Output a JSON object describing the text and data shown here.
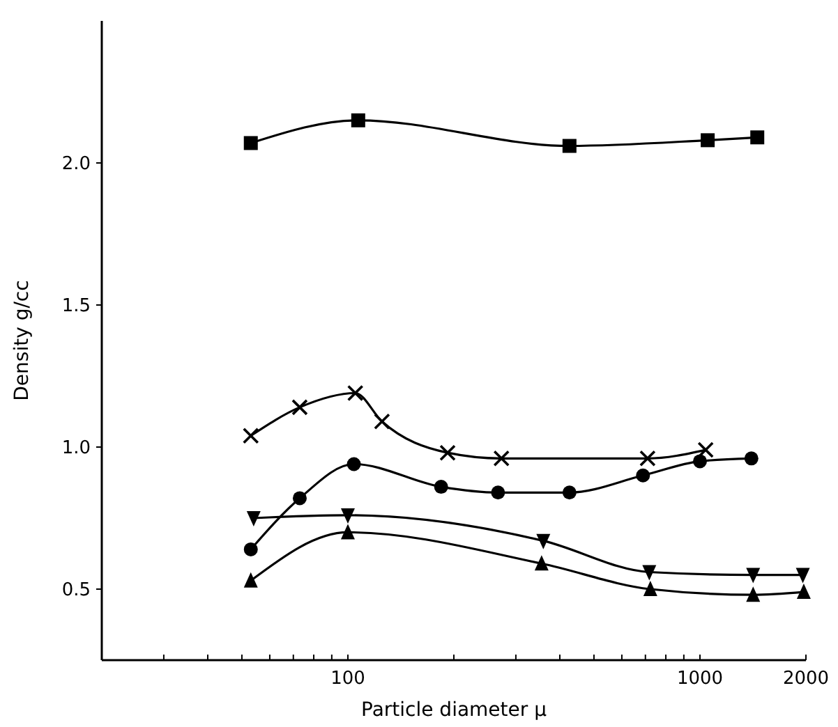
{
  "chart_data": {
    "type": "line",
    "xlabel": "Particle diameter μ",
    "ylabel": "Density g/cc",
    "log": "x",
    "grid": false,
    "xlim": [
      20,
      2000
    ],
    "ylim": [
      0.25,
      2.5
    ],
    "xticks": [
      {
        "value": 30,
        "label": null
      },
      {
        "value": 40,
        "label": null
      },
      {
        "value": 50,
        "label": null
      },
      {
        "value": 60,
        "label": null
      },
      {
        "value": 70,
        "label": null
      },
      {
        "value": 80,
        "label": null
      },
      {
        "value": 90,
        "label": null
      },
      100,
      {
        "value": 200,
        "label": null
      },
      {
        "value": 300,
        "label": null
      },
      {
        "value": 400,
        "label": null
      },
      {
        "value": 500,
        "label": null
      },
      {
        "value": 600,
        "label": null
      },
      {
        "value": 700,
        "label": null
      },
      {
        "value": 800,
        "label": null
      },
      {
        "value": 900,
        "label": null
      },
      1000,
      2000
    ],
    "yticks": [
      0.5,
      {
        "value": 1.0,
        "label": "1.0"
      },
      1.5,
      {
        "value": 2.0,
        "label": "2.0"
      }
    ],
    "series": [
      {
        "color": "#000000",
        "marker": "square",
        "x": [
          53,
          107,
          426,
          1052,
          1455
        ],
        "values": [
          2.07,
          2.15,
          2.06,
          2.08,
          2.09
        ]
      },
      {
        "color": "#000000",
        "marker": "cross",
        "x": [
          53,
          73,
          105,
          125,
          192,
          273,
          710,
          1038
        ],
        "values": [
          1.04,
          1.14,
          1.19,
          1.09,
          0.98,
          0.96,
          0.96,
          0.99
        ]
      },
      {
        "color": "#000000",
        "marker": "circle",
        "x": [
          53,
          73,
          104,
          184,
          267,
          426,
          689,
          1000,
          1400
        ],
        "values": [
          0.64,
          0.82,
          0.94,
          0.86,
          0.84,
          0.84,
          0.9,
          0.95,
          0.96
        ]
      },
      {
        "color": "#000000",
        "marker": "triangle-down",
        "x": [
          54,
          100,
          359,
          718,
          1416,
          1960
        ],
        "values": [
          0.75,
          0.76,
          0.67,
          0.56,
          0.55,
          0.55
        ]
      },
      {
        "color": "#000000",
        "marker": "triangle",
        "x": [
          53,
          100,
          355,
          723,
          1416,
          1972
        ],
        "values": [
          0.53,
          0.7,
          0.59,
          0.5,
          0.48,
          0.49
        ]
      }
    ]
  }
}
